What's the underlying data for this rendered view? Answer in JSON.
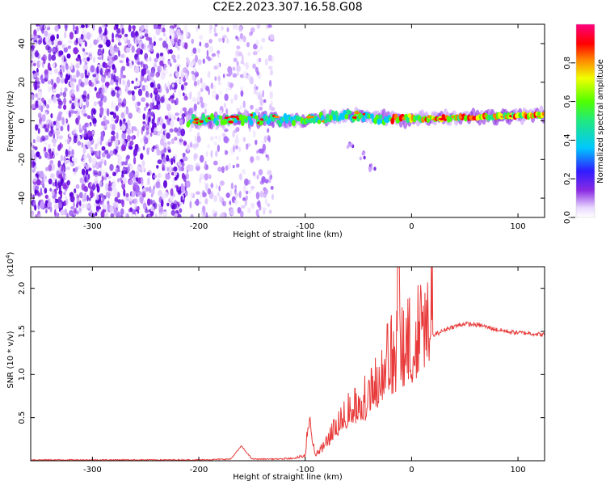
{
  "title": "C2E2.2023.307.16.58.G08",
  "chart_data": [
    {
      "type": "heatmap",
      "xlabel": "Height of straight line (km)",
      "ylabel": "Frequency (Hz)",
      "xlim": [
        -358,
        125
      ],
      "ylim": [
        -50,
        50
      ],
      "x_ticks": [
        -300,
        -200,
        -100,
        0,
        100
      ],
      "y_ticks": [
        -40,
        -20,
        0,
        20,
        40
      ],
      "colorbar": {
        "label": "Normalized spectral amplitude",
        "range": [
          0,
          1
        ],
        "ticks": [
          "0.0",
          "0.2",
          "0.4",
          "0.6",
          "0.8"
        ],
        "colormap": "rainbow (white-violet-blue-cyan-green-yellow-red-magenta)"
      },
      "features": {
        "noise_region_x": [
          -358,
          -130
        ],
        "noise_dense_x": [
          -358,
          -212
        ],
        "signal_line": [
          {
            "x": -210,
            "y": 0
          },
          {
            "x": -150,
            "y": 1
          },
          {
            "x": -100,
            "y": 0
          },
          {
            "x": -60,
            "y": 3
          },
          {
            "x": -20,
            "y": 1
          },
          {
            "x": 0,
            "y": 1
          },
          {
            "x": 60,
            "y": 2
          },
          {
            "x": 125,
            "y": 3
          }
        ],
        "secondary_branch": [
          {
            "x": -58,
            "y": -12
          },
          {
            "x": -45,
            "y": -18
          },
          {
            "x": -37,
            "y": -24
          }
        ]
      }
    },
    {
      "type": "line",
      "xlabel": "Height of straight line (km)",
      "ylabel": "SNR (10 * v/v)",
      "y_multiplier_label": "(x10",
      "y_multiplier_exp": "4",
      "xlim": [
        -358,
        125
      ],
      "ylim": [
        0,
        22500
      ],
      "x_ticks": [
        -300,
        -200,
        -100,
        0,
        100
      ],
      "y_ticks": [
        "0.5",
        "1.0",
        "1.5",
        "2.0"
      ],
      "color": "#e83a3a",
      "series": [
        {
          "x": [
            -358,
            -300,
            -250,
            -200,
            -170,
            -160,
            -150,
            -130,
            -115,
            -100,
            -97,
            -90,
            -80,
            -70,
            -60,
            -50,
            -40,
            -30,
            -25,
            -20,
            -15,
            -12,
            -10,
            0,
            10,
            20,
            35,
            50,
            65,
            80,
            95,
            110,
            125
          ],
          "y": [
            100,
            100,
            100,
            100,
            200,
            1700,
            200,
            200,
            200,
            500,
            3800,
            600,
            1700,
            3500,
            4800,
            5500,
            6200,
            7800,
            9000,
            10000,
            9800,
            22500,
            10500,
            11500,
            12500,
            14500,
            15400,
            15900,
            15700,
            15200,
            14900,
            14800,
            14600
          ]
        }
      ]
    }
  ]
}
